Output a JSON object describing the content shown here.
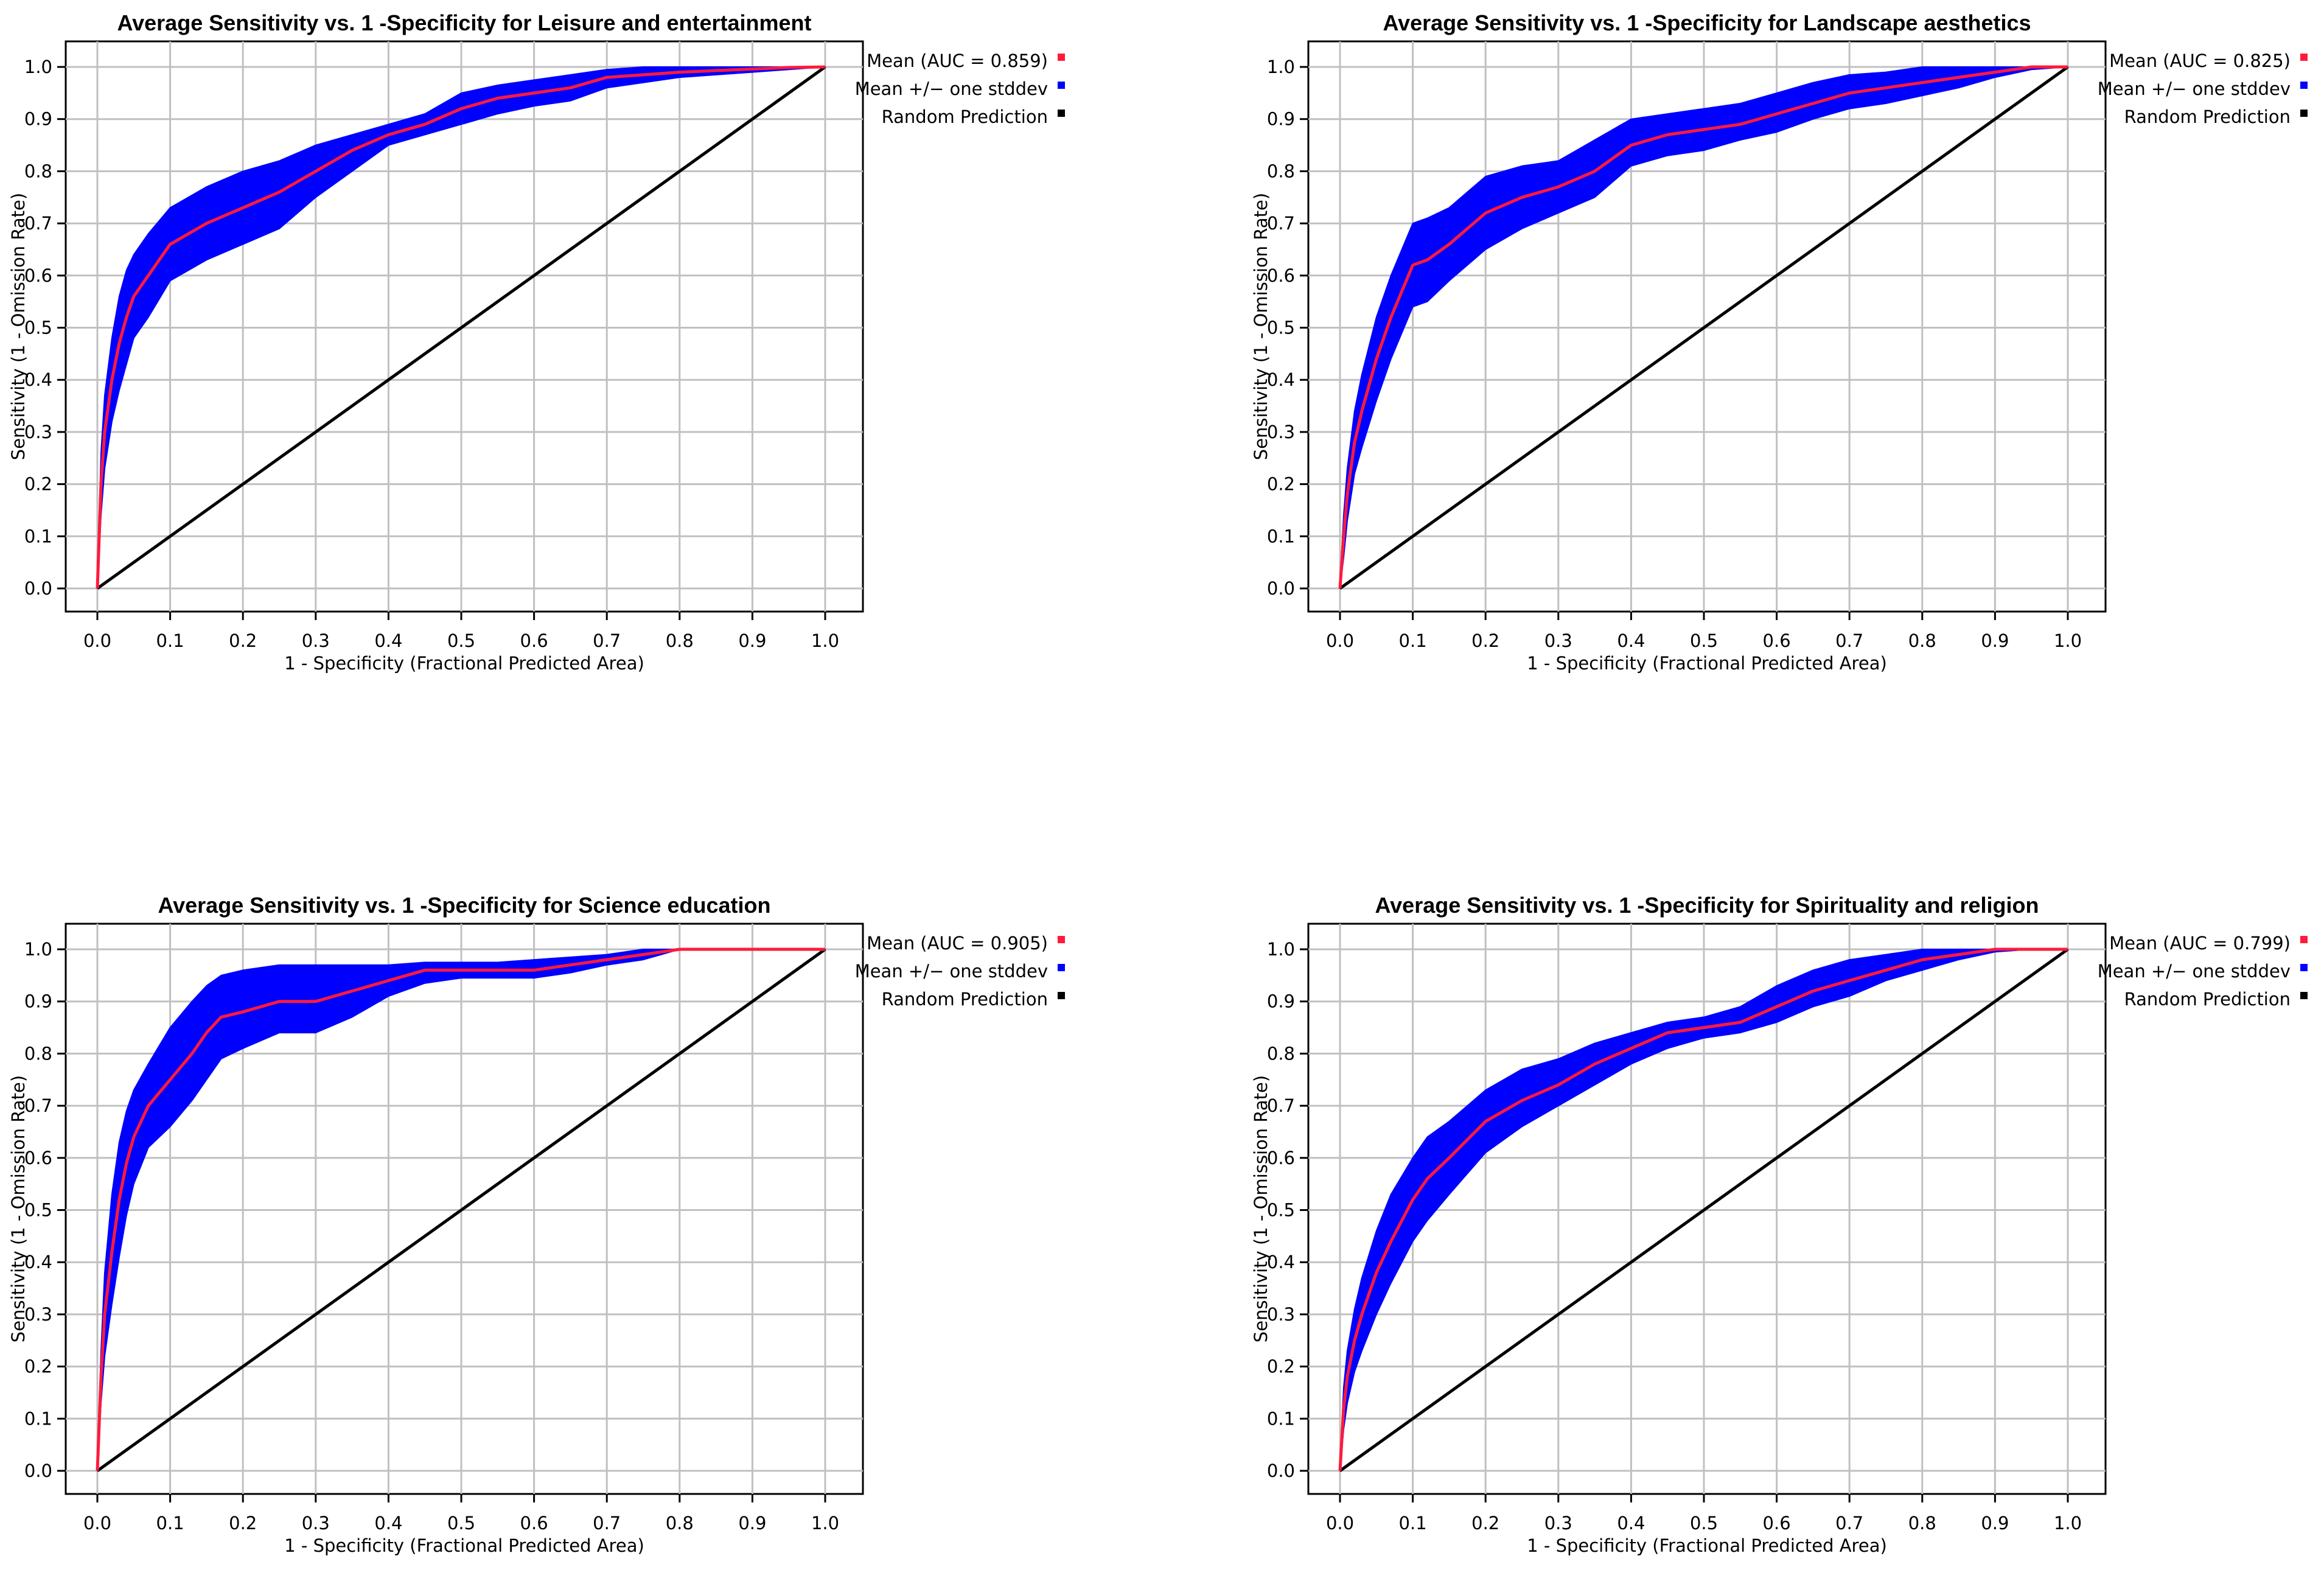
{
  "colors": {
    "mean": "#ff1a3c",
    "band": "#0000ff",
    "random": "#000000",
    "grid": "#c0c0c0",
    "axis": "#000000",
    "background": "#ffffff"
  },
  "chart_data": [
    {
      "type": "line",
      "title": "Average Sensitivity vs. 1 -Specificity for Leisure and entertainment",
      "xlabel": "1 - Specificity (Fractional Predicted Area)",
      "ylabel": "Sensitivity (1 - Omission Rate)",
      "xlim": [
        0,
        1
      ],
      "ylim": [
        0,
        1
      ],
      "xticks": [
        "0.0",
        "0.1",
        "0.2",
        "0.3",
        "0.4",
        "0.5",
        "0.6",
        "0.7",
        "0.8",
        "0.9",
        "1.0"
      ],
      "yticks": [
        "0.0",
        "0.1",
        "0.2",
        "0.3",
        "0.4",
        "0.5",
        "0.6",
        "0.7",
        "0.8",
        "0.9",
        "1.0"
      ],
      "grid": true,
      "legend_position": "top-right outside",
      "legend": [
        "Mean (AUC = 0.859)",
        "Mean +/− one stddev",
        "Random Prediction"
      ],
      "series": [
        {
          "name": "Mean",
          "x": [
            0,
            0.005,
            0.01,
            0.02,
            0.03,
            0.04,
            0.05,
            0.07,
            0.1,
            0.15,
            0.2,
            0.25,
            0.3,
            0.35,
            0.4,
            0.45,
            0.5,
            0.55,
            0.6,
            0.65,
            0.7,
            0.75,
            0.8,
            0.85,
            0.9,
            0.95,
            1.0
          ],
          "y": [
            0,
            0.2,
            0.3,
            0.4,
            0.47,
            0.52,
            0.56,
            0.6,
            0.66,
            0.7,
            0.73,
            0.76,
            0.8,
            0.84,
            0.87,
            0.89,
            0.92,
            0.94,
            0.95,
            0.96,
            0.98,
            0.985,
            0.99,
            0.993,
            0.996,
            0.999,
            1.0
          ]
        },
        {
          "name": "Mean +/− one stddev",
          "x": [
            0,
            0.005,
            0.01,
            0.02,
            0.03,
            0.04,
            0.05,
            0.07,
            0.1,
            0.15,
            0.2,
            0.25,
            0.3,
            0.35,
            0.4,
            0.45,
            0.5,
            0.55,
            0.6,
            0.65,
            0.7,
            0.75,
            0.8,
            0.85,
            0.9,
            0.95,
            1.0
          ],
          "upper": [
            0.01,
            0.26,
            0.37,
            0.48,
            0.56,
            0.61,
            0.64,
            0.68,
            0.73,
            0.77,
            0.8,
            0.82,
            0.85,
            0.87,
            0.89,
            0.91,
            0.95,
            0.965,
            0.975,
            0.985,
            0.995,
            1.0,
            1.0,
            1.0,
            1.0,
            1.0,
            1.0
          ],
          "lower": [
            0,
            0.14,
            0.23,
            0.32,
            0.38,
            0.43,
            0.48,
            0.52,
            0.59,
            0.63,
            0.66,
            0.69,
            0.75,
            0.8,
            0.85,
            0.87,
            0.89,
            0.91,
            0.925,
            0.935,
            0.96,
            0.97,
            0.98,
            0.985,
            0.99,
            0.995,
            1.0
          ]
        },
        {
          "name": "Random Prediction",
          "x": [
            0,
            1
          ],
          "y": [
            0,
            1
          ]
        }
      ]
    },
    {
      "type": "line",
      "title": "Average Sensitivity vs. 1 -Specificity for Landscape aesthetics",
      "xlabel": "1 - Specificity (Fractional Predicted Area)",
      "ylabel": "Sensitivity (1 - Omission Rate)",
      "xlim": [
        0,
        1
      ],
      "ylim": [
        0,
        1
      ],
      "xticks": [
        "0.0",
        "0.1",
        "0.2",
        "0.3",
        "0.4",
        "0.5",
        "0.6",
        "0.7",
        "0.8",
        "0.9",
        "1.0"
      ],
      "yticks": [
        "0.0",
        "0.1",
        "0.2",
        "0.3",
        "0.4",
        "0.5",
        "0.6",
        "0.7",
        "0.8",
        "0.9",
        "1.0"
      ],
      "grid": true,
      "legend_position": "top-right outside",
      "legend": [
        "Mean (AUC = 0.825)",
        "Mean +/− one stddev",
        "Random Prediction"
      ],
      "series": [
        {
          "name": "Mean",
          "x": [
            0,
            0.005,
            0.01,
            0.02,
            0.03,
            0.05,
            0.07,
            0.1,
            0.12,
            0.15,
            0.2,
            0.25,
            0.3,
            0.35,
            0.4,
            0.45,
            0.5,
            0.55,
            0.6,
            0.65,
            0.7,
            0.75,
            0.8,
            0.85,
            0.9,
            0.95,
            1.0
          ],
          "y": [
            0,
            0.1,
            0.18,
            0.28,
            0.34,
            0.44,
            0.52,
            0.62,
            0.63,
            0.66,
            0.72,
            0.75,
            0.77,
            0.8,
            0.85,
            0.87,
            0.88,
            0.89,
            0.91,
            0.93,
            0.95,
            0.96,
            0.97,
            0.98,
            0.99,
            1.0,
            1.0
          ]
        },
        {
          "name": "Mean +/− one stddev",
          "x": [
            0,
            0.005,
            0.01,
            0.02,
            0.03,
            0.05,
            0.07,
            0.1,
            0.12,
            0.15,
            0.2,
            0.25,
            0.3,
            0.35,
            0.4,
            0.45,
            0.5,
            0.55,
            0.6,
            0.65,
            0.7,
            0.75,
            0.8,
            0.85,
            0.9,
            0.95,
            1.0
          ],
          "upper": [
            0.01,
            0.14,
            0.23,
            0.34,
            0.41,
            0.52,
            0.6,
            0.7,
            0.71,
            0.73,
            0.79,
            0.81,
            0.82,
            0.86,
            0.9,
            0.91,
            0.92,
            0.93,
            0.95,
            0.97,
            0.985,
            0.99,
            1.0,
            1.0,
            1.0,
            1.0,
            1.0
          ],
          "lower": [
            0,
            0.06,
            0.13,
            0.22,
            0.27,
            0.36,
            0.44,
            0.54,
            0.55,
            0.59,
            0.65,
            0.69,
            0.72,
            0.75,
            0.81,
            0.83,
            0.84,
            0.86,
            0.875,
            0.9,
            0.92,
            0.93,
            0.945,
            0.96,
            0.98,
            0.995,
            1.0
          ]
        },
        {
          "name": "Random Prediction",
          "x": [
            0,
            1
          ],
          "y": [
            0,
            1
          ]
        }
      ]
    },
    {
      "type": "line",
      "title": "Average Sensitivity vs. 1 -Specificity for Science education",
      "xlabel": "1 - Specificity (Fractional Predicted Area)",
      "ylabel": "Sensitivity (1 - Omission Rate)",
      "xlim": [
        0,
        1
      ],
      "ylim": [
        0,
        1
      ],
      "xticks": [
        "0.0",
        "0.1",
        "0.2",
        "0.3",
        "0.4",
        "0.5",
        "0.6",
        "0.7",
        "0.8",
        "0.9",
        "1.0"
      ],
      "yticks": [
        "0.0",
        "0.1",
        "0.2",
        "0.3",
        "0.4",
        "0.5",
        "0.6",
        "0.7",
        "0.8",
        "0.9",
        "1.0"
      ],
      "grid": true,
      "legend_position": "top-right outside",
      "legend": [
        "Mean (AUC = 0.905)",
        "Mean +/− one stddev",
        "Random Prediction"
      ],
      "series": [
        {
          "name": "Mean",
          "x": [
            0,
            0.005,
            0.01,
            0.02,
            0.03,
            0.04,
            0.05,
            0.07,
            0.1,
            0.13,
            0.15,
            0.17,
            0.2,
            0.25,
            0.3,
            0.35,
            0.4,
            0.45,
            0.5,
            0.55,
            0.6,
            0.65,
            0.7,
            0.75,
            0.8,
            0.9,
            1.0
          ],
          "y": [
            0,
            0.18,
            0.3,
            0.42,
            0.52,
            0.59,
            0.64,
            0.7,
            0.75,
            0.8,
            0.84,
            0.87,
            0.88,
            0.9,
            0.9,
            0.92,
            0.94,
            0.96,
            0.96,
            0.96,
            0.96,
            0.97,
            0.98,
            0.99,
            1.0,
            1.0,
            1.0
          ]
        },
        {
          "name": "Mean +/− one stddev",
          "x": [
            0,
            0.005,
            0.01,
            0.02,
            0.03,
            0.04,
            0.05,
            0.07,
            0.1,
            0.13,
            0.15,
            0.17,
            0.2,
            0.25,
            0.3,
            0.35,
            0.4,
            0.45,
            0.5,
            0.55,
            0.6,
            0.65,
            0.7,
            0.75,
            0.8,
            0.9,
            1.0
          ],
          "upper": [
            0.01,
            0.23,
            0.38,
            0.53,
            0.63,
            0.69,
            0.73,
            0.78,
            0.85,
            0.9,
            0.93,
            0.95,
            0.96,
            0.97,
            0.97,
            0.97,
            0.97,
            0.975,
            0.975,
            0.975,
            0.98,
            0.985,
            0.99,
            1.0,
            1.0,
            1.0,
            1.0
          ],
          "lower": [
            0,
            0.13,
            0.22,
            0.32,
            0.41,
            0.49,
            0.55,
            0.62,
            0.66,
            0.71,
            0.75,
            0.79,
            0.81,
            0.84,
            0.84,
            0.87,
            0.91,
            0.935,
            0.945,
            0.945,
            0.945,
            0.955,
            0.97,
            0.98,
            1.0,
            1.0,
            1.0
          ]
        },
        {
          "name": "Random Prediction",
          "x": [
            0,
            1
          ],
          "y": [
            0,
            1
          ]
        }
      ]
    },
    {
      "type": "line",
      "title": "Average Sensitivity vs. 1 -Specificity for Spirituality and religion",
      "xlabel": "1 - Specificity (Fractional Predicted Area)",
      "ylabel": "Sensitivity (1 - Omission Rate)",
      "xlim": [
        0,
        1
      ],
      "ylim": [
        0,
        1
      ],
      "xticks": [
        "0.0",
        "0.1",
        "0.2",
        "0.3",
        "0.4",
        "0.5",
        "0.6",
        "0.7",
        "0.8",
        "0.9",
        "1.0"
      ],
      "yticks": [
        "0.0",
        "0.1",
        "0.2",
        "0.3",
        "0.4",
        "0.5",
        "0.6",
        "0.7",
        "0.8",
        "0.9",
        "1.0"
      ],
      "grid": true,
      "legend_position": "top-right outside",
      "legend": [
        "Mean (AUC = 0.799)",
        "Mean +/− one stddev",
        "Random Prediction"
      ],
      "series": [
        {
          "name": "Mean",
          "x": [
            0,
            0.005,
            0.01,
            0.02,
            0.03,
            0.05,
            0.07,
            0.1,
            0.12,
            0.15,
            0.2,
            0.25,
            0.3,
            0.35,
            0.4,
            0.45,
            0.5,
            0.55,
            0.6,
            0.65,
            0.7,
            0.75,
            0.8,
            0.85,
            0.9,
            0.95,
            1.0
          ],
          "y": [
            0,
            0.12,
            0.18,
            0.25,
            0.3,
            0.38,
            0.44,
            0.52,
            0.56,
            0.6,
            0.67,
            0.71,
            0.74,
            0.78,
            0.81,
            0.84,
            0.85,
            0.86,
            0.89,
            0.92,
            0.94,
            0.96,
            0.98,
            0.99,
            1.0,
            1.0,
            1.0
          ]
        },
        {
          "name": "Mean +/− one stddev",
          "x": [
            0,
            0.005,
            0.01,
            0.02,
            0.03,
            0.05,
            0.07,
            0.1,
            0.12,
            0.15,
            0.2,
            0.25,
            0.3,
            0.35,
            0.4,
            0.45,
            0.5,
            0.55,
            0.6,
            0.65,
            0.7,
            0.75,
            0.8,
            0.85,
            0.9,
            0.95,
            1.0
          ],
          "upper": [
            0.01,
            0.16,
            0.23,
            0.31,
            0.37,
            0.46,
            0.53,
            0.6,
            0.64,
            0.67,
            0.73,
            0.77,
            0.79,
            0.82,
            0.84,
            0.86,
            0.87,
            0.89,
            0.93,
            0.96,
            0.98,
            0.99,
            1.0,
            1.0,
            1.0,
            1.0,
            1.0
          ],
          "lower": [
            0,
            0.08,
            0.13,
            0.19,
            0.23,
            0.3,
            0.36,
            0.44,
            0.48,
            0.53,
            0.61,
            0.66,
            0.7,
            0.74,
            0.78,
            0.81,
            0.83,
            0.84,
            0.86,
            0.89,
            0.91,
            0.94,
            0.96,
            0.98,
            0.995,
            1.0,
            1.0
          ]
        },
        {
          "name": "Random Prediction",
          "x": [
            0,
            1
          ],
          "y": [
            0,
            1
          ]
        }
      ]
    }
  ]
}
